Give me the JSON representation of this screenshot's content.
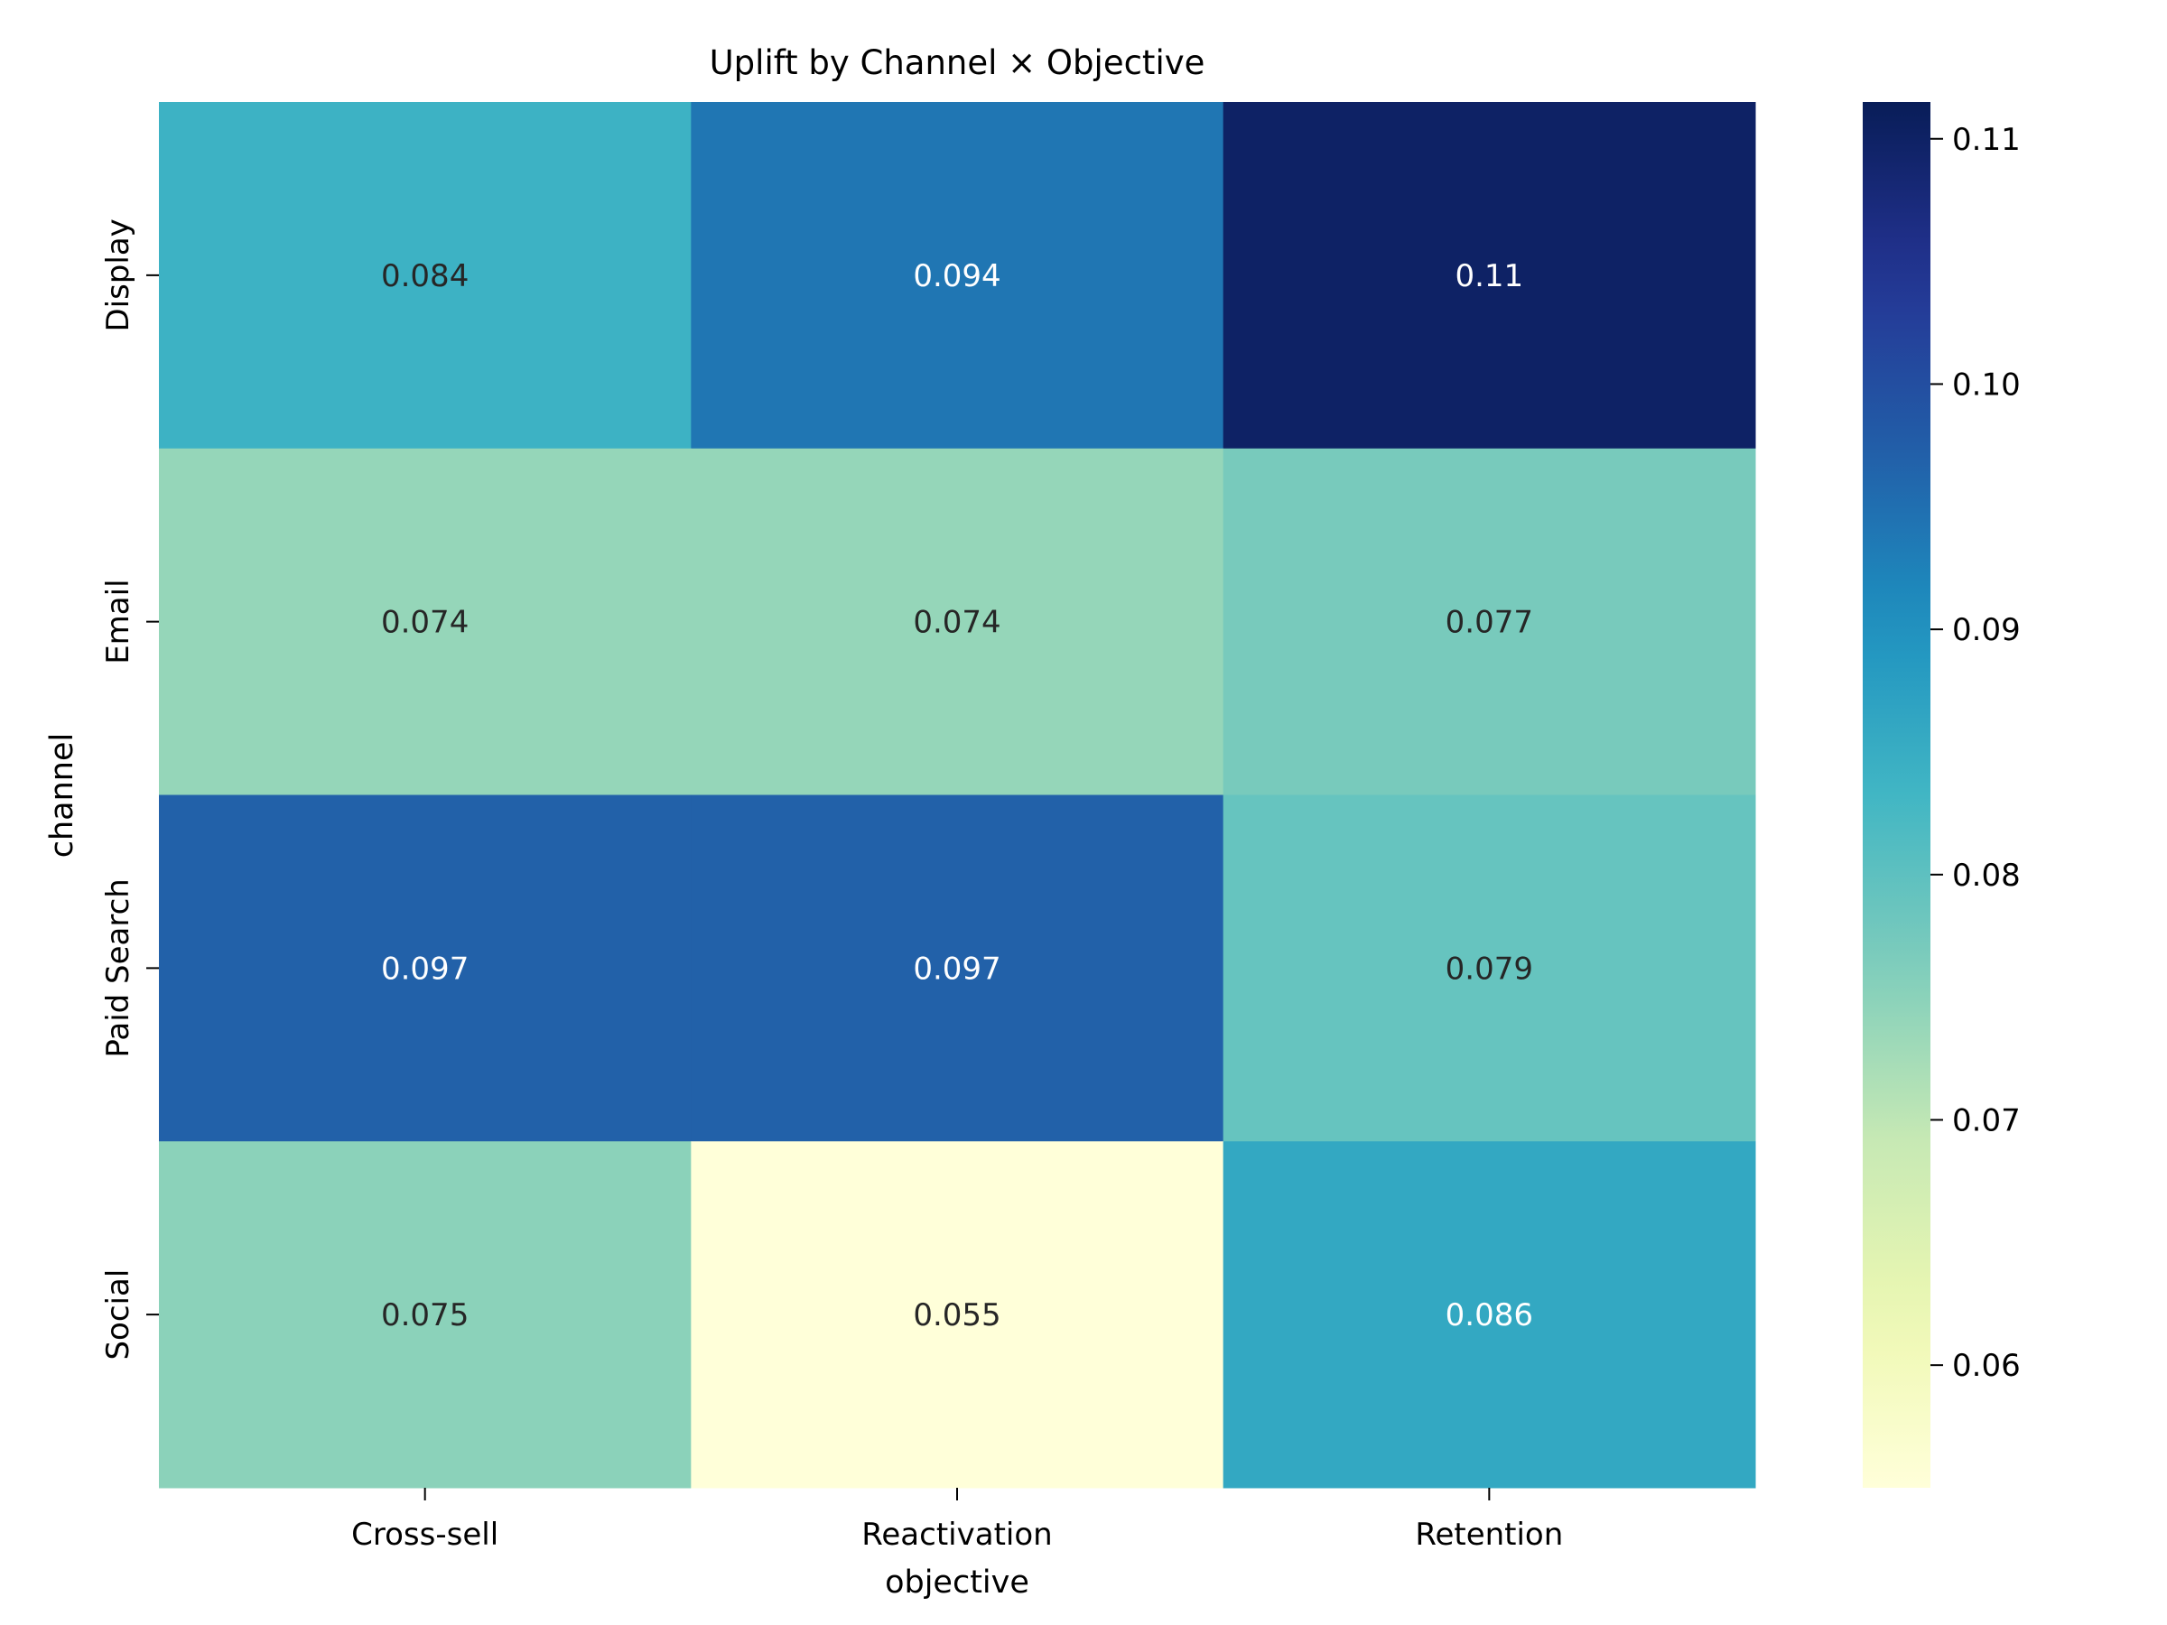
{
  "chart_data": {
    "type": "heatmap",
    "title": "Uplift by Channel × Objective",
    "xlabel": "objective",
    "ylabel": "channel",
    "x_categories": [
      "Cross-sell",
      "Reactivation",
      "Retention"
    ],
    "y_categories": [
      "Display",
      "Email",
      "Paid Search",
      "Social"
    ],
    "values": [
      [
        0.084,
        0.094,
        0.11
      ],
      [
        0.074,
        0.074,
        0.077
      ],
      [
        0.097,
        0.097,
        0.079
      ],
      [
        0.075,
        0.055,
        0.086
      ]
    ],
    "cell_labels": [
      [
        "0.084",
        "0.094",
        "0.11"
      ],
      [
        "0.074",
        "0.074",
        "0.077"
      ],
      [
        "0.097",
        "0.097",
        "0.079"
      ],
      [
        "0.075",
        "0.055",
        "0.086"
      ]
    ],
    "colorbar": {
      "colormap": "YlGnBu",
      "vmin": 0.055,
      "vmax": 0.1115,
      "ticks": [
        0.06,
        0.07,
        0.08,
        0.09,
        0.1,
        0.11
      ],
      "tick_labels": [
        "0.06",
        "0.07",
        "0.08",
        "0.09",
        "0.10",
        "0.11"
      ]
    },
    "grid": false,
    "legend": "colorbar-right"
  }
}
